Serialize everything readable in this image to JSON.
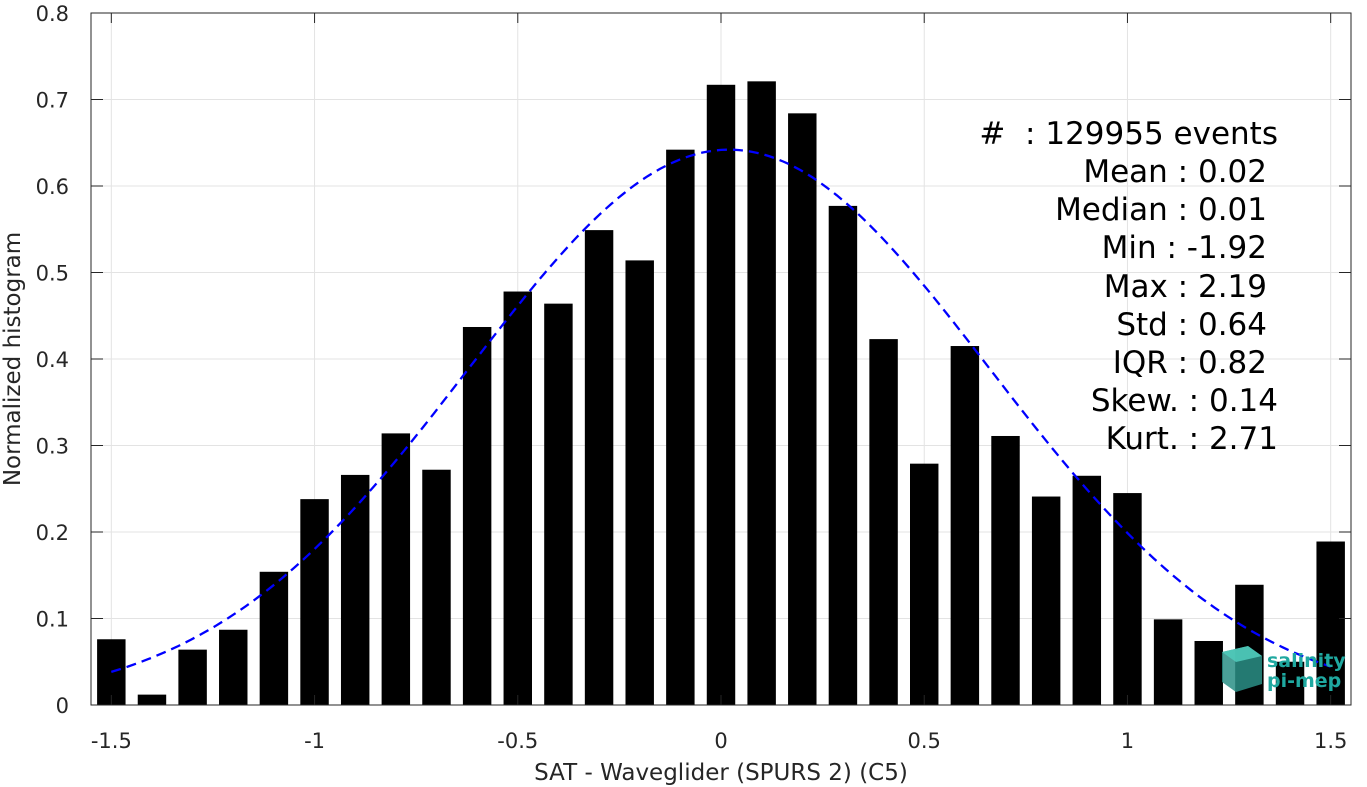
{
  "chart_data": {
    "type": "bar",
    "xlabel": "SAT - Waveglider (SPURS 2) (C5)",
    "ylabel": "Normalized histogram",
    "xlim": [
      -1.55,
      1.55
    ],
    "ylim": [
      0,
      0.8
    ],
    "xticks": [
      -1.5,
      -1,
      -0.5,
      0,
      0.5,
      1,
      1.5
    ],
    "xtick_labels": [
      "-1.5",
      "-1",
      "-0.5",
      "0",
      "0.5",
      "1",
      "1.5"
    ],
    "yticks": [
      0,
      0.1,
      0.2,
      0.3,
      0.4,
      0.5,
      0.6,
      0.7,
      0.8
    ],
    "ytick_labels": [
      "0",
      "0.1",
      "0.2",
      "0.3",
      "0.4",
      "0.5",
      "0.6",
      "0.7",
      "0.8"
    ],
    "grid": true,
    "bar_color": "#000000",
    "bar_width": 0.07,
    "bins": [
      {
        "x": -1.5,
        "y": 0.076
      },
      {
        "x": -1.4,
        "y": 0.012
      },
      {
        "x": -1.3,
        "y": 0.064
      },
      {
        "x": -1.2,
        "y": 0.087
      },
      {
        "x": -1.1,
        "y": 0.154
      },
      {
        "x": -1.0,
        "y": 0.238
      },
      {
        "x": -0.9,
        "y": 0.266
      },
      {
        "x": -0.8,
        "y": 0.314
      },
      {
        "x": -0.7,
        "y": 0.272
      },
      {
        "x": -0.6,
        "y": 0.437
      },
      {
        "x": -0.5,
        "y": 0.478
      },
      {
        "x": -0.4,
        "y": 0.464
      },
      {
        "x": -0.3,
        "y": 0.549
      },
      {
        "x": -0.2,
        "y": 0.514
      },
      {
        "x": -0.1,
        "y": 0.642
      },
      {
        "x": 0.0,
        "y": 0.717
      },
      {
        "x": 0.1,
        "y": 0.721
      },
      {
        "x": 0.2,
        "y": 0.684
      },
      {
        "x": 0.3,
        "y": 0.577
      },
      {
        "x": 0.4,
        "y": 0.423
      },
      {
        "x": 0.5,
        "y": 0.279
      },
      {
        "x": 0.6,
        "y": 0.415
      },
      {
        "x": 0.7,
        "y": 0.311
      },
      {
        "x": 0.8,
        "y": 0.241
      },
      {
        "x": 0.9,
        "y": 0.265
      },
      {
        "x": 1.0,
        "y": 0.245
      },
      {
        "x": 1.1,
        "y": 0.099
      },
      {
        "x": 1.2,
        "y": 0.074
      },
      {
        "x": 1.3,
        "y": 0.139
      },
      {
        "x": 1.4,
        "y": 0.05
      },
      {
        "x": 1.5,
        "y": 0.189
      }
    ],
    "fit_curve": {
      "type": "gaussian",
      "mean": 0.02,
      "std": 0.64,
      "peak": 0.642,
      "x_range": [
        -1.5,
        1.5
      ],
      "color": "#0000ff",
      "style": "dashed"
    }
  },
  "stats": [
    "#  : 129955 events",
    "Mean : 0.02",
    "Median : 0.01",
    "Min : -1.92",
    "Max : 2.19",
    "Std : 0.64",
    "IQR : 0.82",
    "Skew. : 0.14",
    "Kurt. : 2.71"
  ],
  "logo": {
    "line1": "salinity",
    "line2": "pi-mep",
    "color": "#1fa8a0"
  }
}
